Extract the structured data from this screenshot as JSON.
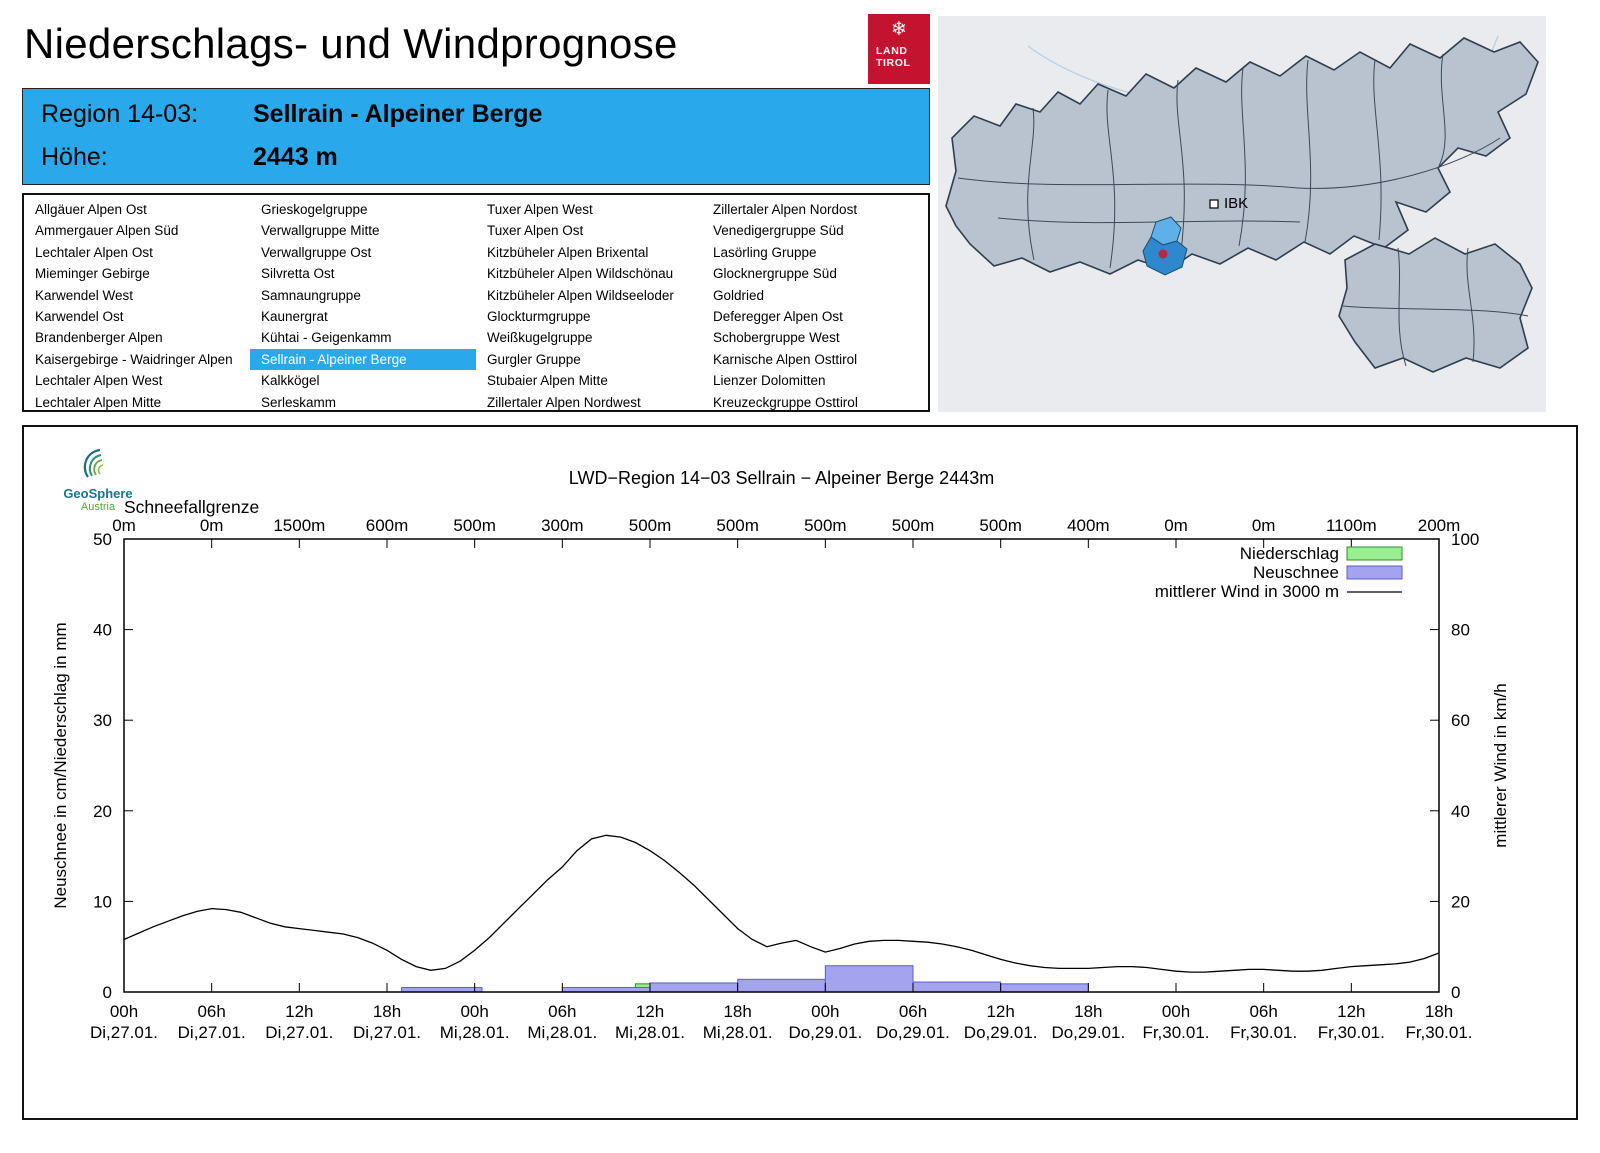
{
  "header": {
    "title": "Niederschlags- und Windprognose",
    "logo_line1": "LAND",
    "logo_line2": "TIROL"
  },
  "region_info": {
    "region_label": "Region 14-03:",
    "region_value": "Sellrain - Alpeiner Berge",
    "altitude_label": "Höhe:",
    "altitude_value": "2443 m"
  },
  "map": {
    "city_marker": "IBK",
    "highlight_region": "Sellrain - Alpeiner Berge",
    "highlight_color": "#2f88cc"
  },
  "region_list": {
    "selected": "Sellrain - Alpeiner Berge",
    "columns": [
      [
        "Allgäuer Alpen Ost",
        "Ammergauer Alpen Süd",
        "Lechtaler Alpen Ost",
        "Mieminger Gebirge",
        "Karwendel West",
        "Karwendel Ost",
        "Brandenberger Alpen",
        "Kaisergebirge - Waidringer Alpen",
        "Lechtaler Alpen West",
        "Lechtaler Alpen Mitte"
      ],
      [
        "Grieskogelgruppe",
        "Verwallgruppe Mitte",
        "Verwallgruppe Ost",
        "Silvretta Ost",
        "Samnaungruppe",
        "Kaunergrat",
        "Kühtai - Geigenkamm",
        "Sellrain - Alpeiner Berge",
        "Kalkkögel",
        "Serleskamm"
      ],
      [
        "Tuxer Alpen West",
        "Tuxer Alpen Ost",
        "Kitzbüheler Alpen Brixental",
        "Kitzbüheler Alpen Wildschönau",
        "Kitzbüheler Alpen Wildseeloder",
        "Glockturmgruppe",
        "Weißkugelgruppe",
        "Gurgler Gruppe",
        "Stubaier Alpen Mitte",
        "Zillertaler Alpen Nordwest"
      ],
      [
        "Zillertaler Alpen Nordost",
        "Venedigergruppe Süd",
        "Lasörling Gruppe",
        "Glocknergruppe Süd",
        "Goldried",
        "Deferegger Alpen Ost",
        "Schobergruppe West",
        "Karnische Alpen Osttirol",
        "Lienzer Dolomitten",
        "Kreuzeckgruppe Osttirol"
      ]
    ]
  },
  "geosphere": {
    "name": "GeoSphere",
    "country": "Austria"
  },
  "chart_data": {
    "type": "bar+line combo",
    "title": "LWD−Region 14−03 Sellrain − Alpeiner Berge 2443m",
    "schneefallgrenze_label": "Schneefallgrenze",
    "ylabel_left": "Neuschnee in cm/Niederschlag in mm",
    "ylabel_right": "mittlerer Wind in km/h",
    "ylim_left": [
      0,
      50
    ],
    "ylim_right": [
      0,
      100
    ],
    "yticks_left": [
      0,
      10,
      20,
      30,
      40,
      50
    ],
    "yticks_right": [
      0,
      20,
      40,
      60,
      80,
      100
    ],
    "x_hours_range": [
      0,
      90
    ],
    "x_ticks": [
      {
        "t": 0,
        "hour": "00h",
        "date": "Di,27.01.",
        "sfg": "0m"
      },
      {
        "t": 6,
        "hour": "06h",
        "date": "Di,27.01.",
        "sfg": "0m"
      },
      {
        "t": 12,
        "hour": "12h",
        "date": "Di,27.01.",
        "sfg": "1500m"
      },
      {
        "t": 18,
        "hour": "18h",
        "date": "Di,27.01.",
        "sfg": "600m"
      },
      {
        "t": 24,
        "hour": "00h",
        "date": "Mi,28.01.",
        "sfg": "500m"
      },
      {
        "t": 30,
        "hour": "06h",
        "date": "Mi,28.01.",
        "sfg": "300m"
      },
      {
        "t": 36,
        "hour": "12h",
        "date": "Mi,28.01.",
        "sfg": "500m"
      },
      {
        "t": 42,
        "hour": "18h",
        "date": "Mi,28.01.",
        "sfg": "500m"
      },
      {
        "t": 48,
        "hour": "00h",
        "date": "Do,29.01.",
        "sfg": "500m"
      },
      {
        "t": 54,
        "hour": "06h",
        "date": "Do,29.01.",
        "sfg": "500m"
      },
      {
        "t": 60,
        "hour": "12h",
        "date": "Do,29.01.",
        "sfg": "500m"
      },
      {
        "t": 66,
        "hour": "18h",
        "date": "Do,29.01.",
        "sfg": "400m"
      },
      {
        "t": 72,
        "hour": "00h",
        "date": "Fr,30.01.",
        "sfg": "0m"
      },
      {
        "t": 78,
        "hour": "06h",
        "date": "Fr,30.01.",
        "sfg": "0m"
      },
      {
        "t": 84,
        "hour": "12h",
        "date": "Fr,30.01.",
        "sfg": "1100m"
      },
      {
        "t": 90,
        "hour": "18h",
        "date": "Fr,30.01.",
        "sfg": "200m"
      }
    ],
    "legend": [
      {
        "label": "Niederschlag",
        "type": "box",
        "color": "#98ee90",
        "border": "#2e8b2e"
      },
      {
        "label": "Neuschnee",
        "type": "box",
        "color": "#a3a3ef",
        "border": "#5c5ccc"
      },
      {
        "label": "mittlerer Wind in 3000 m",
        "type": "line",
        "color": "#000000"
      }
    ],
    "colors": {
      "niederschlag": "#98ee90",
      "niederschlag_border": "#2e8b2e",
      "neuschnee": "#a3a3ef",
      "neuschnee_border": "#5c5ccc",
      "wind": "#000000"
    },
    "niederschlag_bars_mm": [
      {
        "start": 35,
        "end": 38,
        "value": 0.9
      }
    ],
    "neuschnee_bars_cm": [
      {
        "start": 19,
        "end": 24.5,
        "value": 0.5
      },
      {
        "start": 30,
        "end": 36,
        "value": 0.5
      },
      {
        "start": 36,
        "end": 42,
        "value": 1.0
      },
      {
        "start": 42,
        "end": 48,
        "value": 1.4
      },
      {
        "start": 48,
        "end": 54,
        "value": 2.9
      },
      {
        "start": 54,
        "end": 60,
        "value": 1.1
      },
      {
        "start": 60,
        "end": 66,
        "value": 0.9
      }
    ],
    "wind_kmh": {
      "t_start": 0,
      "t_step": 1,
      "values": [
        11.6,
        13.0,
        14.4,
        15.6,
        16.8,
        17.8,
        18.4,
        18.2,
        17.6,
        16.4,
        15.2,
        14.4,
        14.0,
        13.6,
        13.2,
        12.8,
        12.0,
        10.8,
        9.2,
        7.2,
        5.6,
        4.8,
        5.2,
        6.8,
        9.2,
        12.0,
        15.2,
        18.4,
        21.6,
        24.8,
        27.6,
        31.2,
        33.8,
        34.6,
        34.2,
        33.0,
        31.2,
        29.0,
        26.4,
        23.6,
        20.4,
        17.2,
        14.0,
        11.6,
        10.0,
        10.8,
        11.4,
        10.0,
        8.8,
        9.6,
        10.6,
        11.2,
        11.4,
        11.4,
        11.2,
        11.0,
        10.6,
        10.0,
        9.2,
        8.2,
        7.2,
        6.4,
        5.8,
        5.4,
        5.2,
        5.2,
        5.2,
        5.4,
        5.6,
        5.6,
        5.4,
        5.0,
        4.6,
        4.4,
        4.4,
        4.6,
        4.8,
        5.0,
        5.0,
        4.8,
        4.6,
        4.6,
        4.8,
        5.2,
        5.6,
        5.8,
        6.0,
        6.2,
        6.6,
        7.4,
        8.6
      ]
    }
  }
}
